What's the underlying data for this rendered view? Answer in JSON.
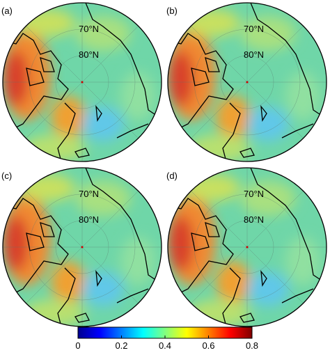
{
  "panels": [
    {
      "label": "(a)"
    },
    {
      "label": "(b)"
    },
    {
      "label": "(c)"
    },
    {
      "label": "(d)"
    }
  ],
  "lat_labels": [
    "70°N",
    "80°N"
  ],
  "colorbar": {
    "lim": [
      0,
      0.8
    ],
    "ticks": [
      0,
      0.2,
      0.4,
      0.6,
      0.8
    ]
  }
}
